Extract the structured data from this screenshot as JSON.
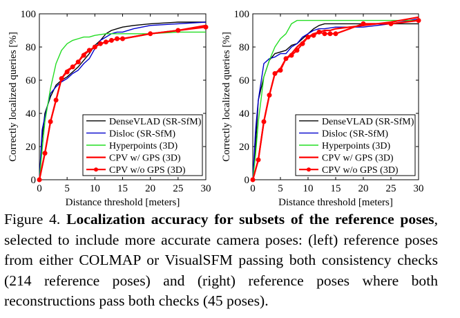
{
  "chart_data": [
    {
      "type": "line",
      "panel": "left",
      "xlabel": "Distance threshold [meters]",
      "ylabel": "Correctly localized queries [%]",
      "xlim": [
        0,
        30
      ],
      "ylim": [
        0,
        100
      ],
      "xticks": [
        0,
        5,
        10,
        15,
        20,
        25,
        30
      ],
      "yticks": [
        0,
        20,
        40,
        60,
        80,
        100
      ],
      "grid": false,
      "legend_position": "bottom-right",
      "series": [
        {
          "name": "DenseVLAD (SR-SfM)",
          "color": "#000000",
          "marker": "none",
          "x": [
            0,
            0.5,
            1,
            2,
            3,
            4,
            5,
            6,
            7,
            8,
            9,
            10,
            11,
            12,
            13,
            14,
            15,
            17,
            20,
            25,
            30
          ],
          "y": [
            0,
            25,
            40,
            50,
            57,
            60,
            62,
            65,
            68,
            72,
            76,
            81,
            84,
            88,
            90,
            91,
            92,
            93,
            94,
            95,
            95
          ]
        },
        {
          "name": "Disloc (SR-SfM)",
          "color": "#0000cc",
          "marker": "none",
          "x": [
            0,
            0.5,
            1,
            2,
            3,
            4,
            5,
            6,
            7,
            8,
            9,
            10,
            11,
            12,
            13,
            14,
            15,
            17,
            20,
            25,
            30
          ],
          "y": [
            0,
            30,
            38,
            52,
            56,
            59,
            61,
            64,
            66,
            70,
            73,
            79,
            84,
            86,
            88,
            89,
            89,
            91,
            93,
            94,
            95
          ]
        },
        {
          "name": "Hyperpoints (3D)",
          "color": "#22dd22",
          "marker": "none",
          "x": [
            0,
            0.5,
            1,
            2,
            3,
            4,
            5,
            6,
            7,
            8,
            9,
            10,
            12,
            15,
            20,
            25,
            30
          ],
          "y": [
            0,
            18,
            35,
            55,
            70,
            78,
            82,
            84,
            85,
            86,
            86,
            87,
            88,
            88,
            88,
            89,
            89
          ]
        },
        {
          "name": "CPV w/ GPS (3D)",
          "color": "#ff0000",
          "marker": "none",
          "x": [
            0,
            1,
            2,
            3,
            4,
            5,
            6,
            7,
            8,
            9,
            10,
            11,
            12,
            13,
            14,
            15,
            20,
            25,
            30
          ],
          "y": [
            0,
            16,
            35,
            48,
            61,
            66,
            68,
            71,
            76,
            78,
            80,
            82,
            83,
            84,
            85,
            85,
            88,
            90,
            93
          ]
        },
        {
          "name": "CPV w/o GPS (3D)",
          "color": "#ff0000",
          "marker": "circle",
          "x": [
            0,
            1,
            2,
            3,
            4,
            5,
            6,
            7,
            8,
            9,
            10,
            11,
            12,
            13,
            14,
            15,
            20,
            25,
            30
          ],
          "y": [
            0,
            16,
            35,
            48,
            61,
            65,
            68,
            71,
            75,
            78,
            80,
            82,
            83,
            84,
            85,
            85,
            88,
            90,
            92
          ]
        }
      ]
    },
    {
      "type": "line",
      "panel": "right",
      "xlabel": "Distance threshold [meters]",
      "ylabel": "Correctly localized queries [%]",
      "xlim": [
        0,
        30
      ],
      "ylim": [
        0,
        100
      ],
      "xticks": [
        0,
        5,
        10,
        15,
        20,
        25,
        30
      ],
      "yticks": [
        0,
        20,
        40,
        60,
        80,
        100
      ],
      "grid": false,
      "legend_position": "bottom-right",
      "series": [
        {
          "name": "DenseVLAD (SR-SfM)",
          "color": "#000000",
          "marker": "none",
          "x": [
            0,
            0.5,
            1,
            2,
            3,
            4,
            5,
            6,
            7,
            8,
            9,
            10,
            11,
            12,
            13,
            14,
            15,
            20,
            25,
            30
          ],
          "y": [
            0,
            20,
            48,
            62,
            72,
            76,
            77,
            78,
            81,
            82,
            85,
            88,
            91,
            93,
            94,
            94,
            94,
            94,
            94,
            94
          ]
        },
        {
          "name": "Disloc (SR-SfM)",
          "color": "#0000cc",
          "marker": "none",
          "x": [
            0,
            0.5,
            1,
            2,
            3,
            4,
            5,
            6,
            7,
            8,
            9,
            10,
            11,
            12,
            13,
            15,
            20,
            25,
            30
          ],
          "y": [
            0,
            30,
            48,
            70,
            73,
            74,
            76,
            76,
            80,
            82,
            86,
            88,
            90,
            91,
            91,
            92,
            92,
            94,
            97
          ]
        },
        {
          "name": "Hyperpoints (3D)",
          "color": "#22dd22",
          "marker": "none",
          "x": [
            0,
            0.5,
            1,
            2,
            3,
            4,
            5,
            6,
            7,
            8,
            10,
            15,
            20,
            25,
            30
          ],
          "y": [
            0,
            15,
            35,
            62,
            72,
            80,
            85,
            88,
            94,
            96,
            96,
            96,
            96,
            96,
            96
          ]
        },
        {
          "name": "CPV w/ GPS (3D)",
          "color": "#ff0000",
          "marker": "none",
          "x": [
            0,
            1,
            2,
            3,
            4,
            5,
            6,
            7,
            8,
            9,
            10,
            11,
            12,
            13,
            14,
            15,
            20,
            25,
            30
          ],
          "y": [
            0,
            12,
            35,
            51,
            64,
            67,
            73,
            76,
            80,
            83,
            86,
            88,
            89,
            90,
            90,
            91,
            93,
            95,
            98
          ]
        },
        {
          "name": "CPV w/o GPS (3D)",
          "color": "#ff0000",
          "marker": "circle",
          "x": [
            0,
            1,
            2,
            3,
            4,
            5,
            6,
            7,
            8,
            9,
            10,
            11,
            12,
            13,
            14,
            15,
            20,
            25,
            30
          ],
          "y": [
            0,
            12,
            35,
            51,
            64,
            66,
            73,
            75,
            78,
            82,
            86,
            87,
            89,
            88,
            88,
            88,
            94,
            94,
            96
          ]
        }
      ]
    }
  ],
  "caption": {
    "label": "Figure 4.",
    "bold_title": "Localization accuracy for subsets of the reference poses",
    "text": ", selected to include more accurate camera poses: (left) reference poses from either COLMAP or VisualSFM passing both consistency checks (214 reference poses) and (right) reference poses where both reconstructions pass both checks (45 poses)."
  }
}
